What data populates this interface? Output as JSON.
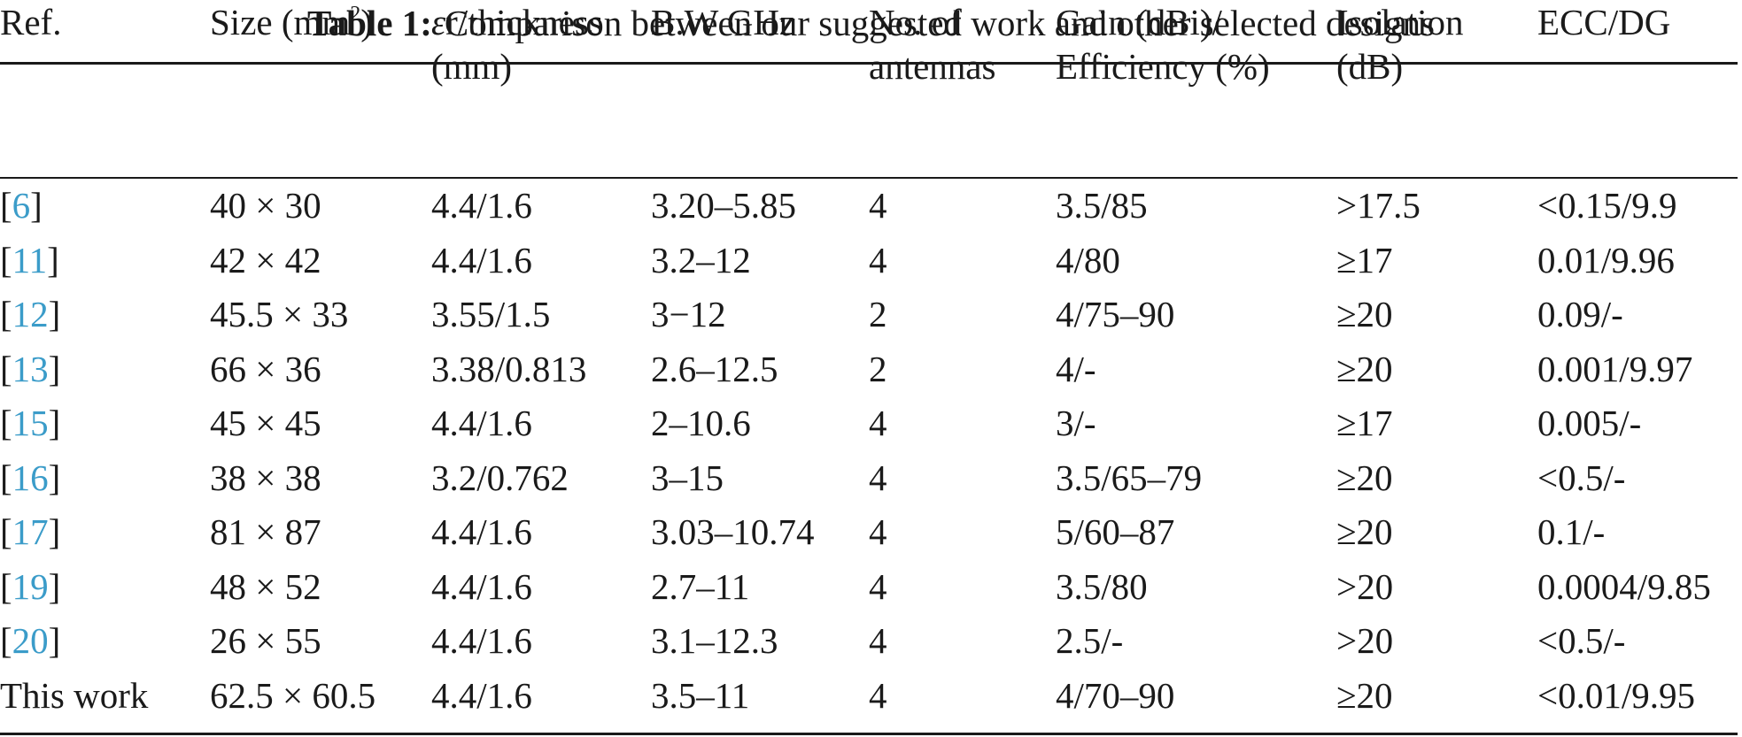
{
  "caption": {
    "label": "Table 1:",
    "text": "Comparison between our suggested work and other selected designs"
  },
  "colors": {
    "text": "#1a1a1a",
    "ref_link": "#3b9cc9",
    "rule": "#1a1a1a"
  },
  "header": {
    "ref": "Ref.",
    "size_pre": "Size (mm",
    "size_sup": "2",
    "size_post": ")",
    "eps_symbol": "ε",
    "eps_rest": "r/thickness",
    "eps_line2": "(mm)",
    "bw": "B.W GHz",
    "num_line1": "No. of",
    "num_line2": "antennas",
    "gain_line1": "Gain (dBi)/",
    "gain_line2": "Efficiency (%)",
    "iso_line1": "Isolation",
    "iso_line2": "(dB)",
    "ecc": "ECC/DG"
  },
  "rows": [
    {
      "ref_open": "[",
      "ref_num": "6",
      "ref_close": "]",
      "size": "40 × 30",
      "eps": "4.4/1.6",
      "bw": "3.20–5.85",
      "num": "4",
      "gain": "3.5/85",
      "iso": ">17.5",
      "ecc": "<0.15/9.9"
    },
    {
      "ref_open": "[",
      "ref_num": "11",
      "ref_close": "]",
      "size": "42 × 42",
      "eps": "4.4/1.6",
      "bw": "3.2–12",
      "num": "4",
      "gain": "4/80",
      "iso": "≥17",
      "ecc": "0.01/9.96"
    },
    {
      "ref_open": "[",
      "ref_num": "12",
      "ref_close": "]",
      "size": "45.5 × 33",
      "eps": "3.55/1.5",
      "bw": "3−12",
      "num": "2",
      "gain": "4/75–90",
      "iso": "≥20",
      "ecc": "0.09/-"
    },
    {
      "ref_open": "[",
      "ref_num": "13",
      "ref_close": "]",
      "size": "66 × 36",
      "eps": "3.38/0.813",
      "bw": "2.6–12.5",
      "num": "2",
      "gain": "4/-",
      "iso": "≥20",
      "ecc": "0.001/9.97"
    },
    {
      "ref_open": "[",
      "ref_num": "15",
      "ref_close": "]",
      "size": "45 × 45",
      "eps": "4.4/1.6",
      "bw": "2–10.6",
      "num": "4",
      "gain": "3/-",
      "iso": "≥17",
      "ecc": "0.005/-"
    },
    {
      "ref_open": "[",
      "ref_num": "16",
      "ref_close": "]",
      "size": "38 × 38",
      "eps": "3.2/0.762",
      "bw": "3–15",
      "num": "4",
      "gain": "3.5/65–79",
      "iso": "≥20",
      "ecc": "<0.5/-"
    },
    {
      "ref_open": "[",
      "ref_num": "17",
      "ref_close": "]",
      "size": "81 × 87",
      "eps": "4.4/1.6",
      "bw": "3.03–10.74",
      "num": "4",
      "gain": "5/60–87",
      "iso": "≥20",
      "ecc": "0.1/-"
    },
    {
      "ref_open": "[",
      "ref_num": "19",
      "ref_close": "]",
      "size": "48 × 52",
      "eps": "4.4/1.6",
      "bw": "2.7–11",
      "num": "4",
      "gain": "3.5/80",
      "iso": ">20",
      "ecc": "0.0004/9.85"
    },
    {
      "ref_open": "[",
      "ref_num": "20",
      "ref_close": "]",
      "size": "26 × 55",
      "eps": "4.4/1.6",
      "bw": "3.1–12.3",
      "num": "4",
      "gain": "2.5/-",
      "iso": ">20",
      "ecc": "<0.5/-"
    },
    {
      "ref_plain": "This work",
      "size": "62.5 × 60.5",
      "eps": "4.4/1.6",
      "bw": "3.5–11",
      "num": "4",
      "gain": "4/70–90",
      "iso": "≥20",
      "ecc": "<0.01/9.95"
    }
  ]
}
